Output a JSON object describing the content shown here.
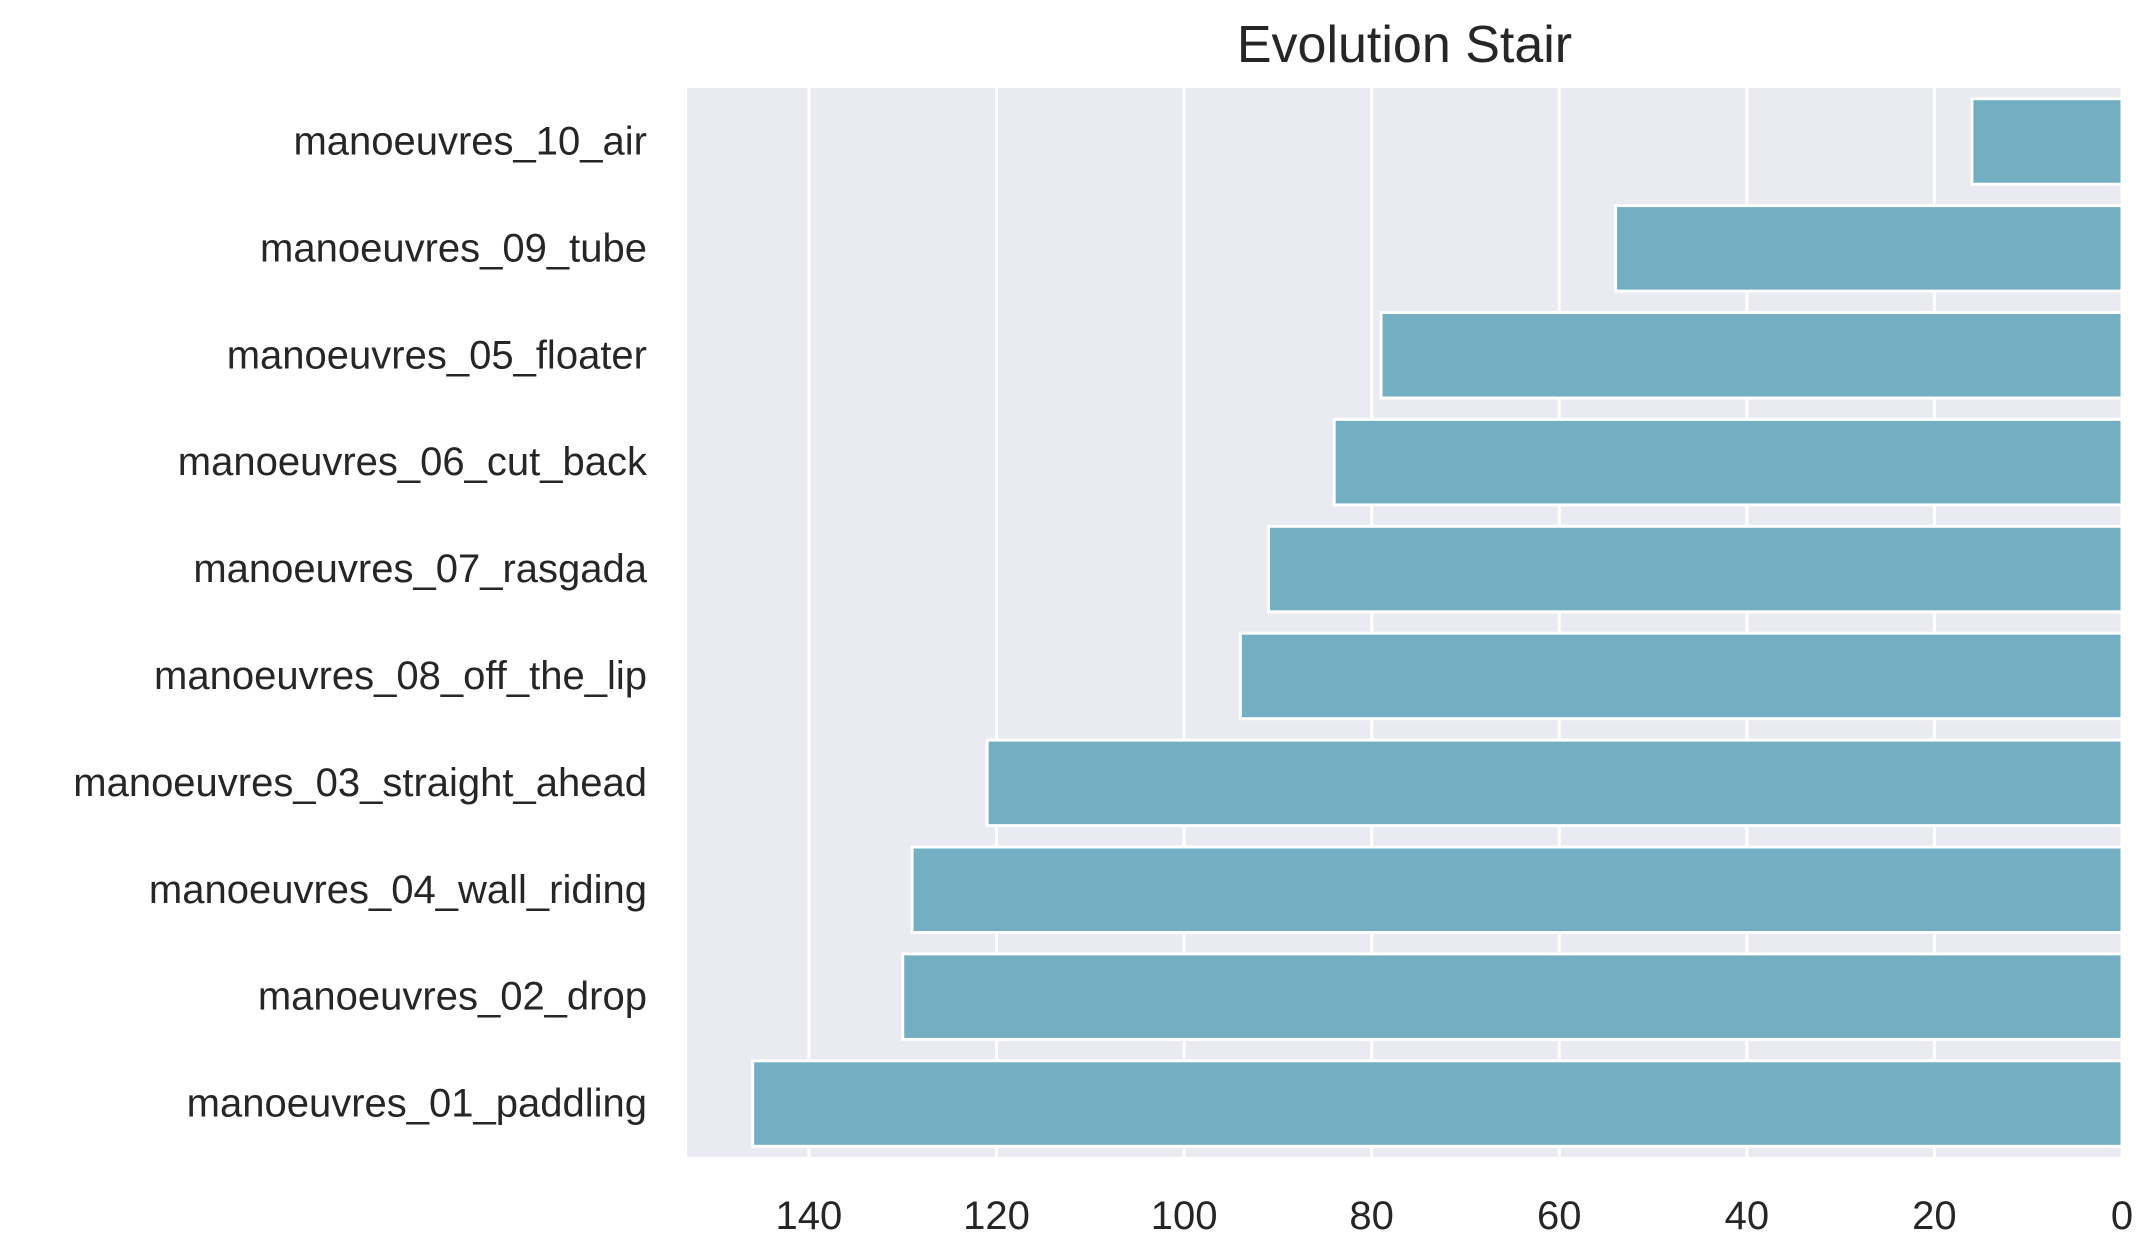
{
  "chart_data": {
    "type": "bar",
    "orientation": "horizontal",
    "title": "Evolution Stair",
    "xlabel": "",
    "ylabel": "",
    "categories": [
      "manoeuvres_10_air",
      "manoeuvres_09_tube",
      "manoeuvres_05_floater",
      "manoeuvres_06_cut_back",
      "manoeuvres_07_rasgada",
      "manoeuvres_08_off_the_lip",
      "manoeuvres_03_straight_ahead",
      "manoeuvres_04_wall_riding",
      "manoeuvres_02_drop",
      "manoeuvres_01_paddling"
    ],
    "values": [
      16,
      54,
      79,
      84,
      91,
      94,
      121,
      129,
      130,
      146
    ],
    "xlim": [
      153,
      0
    ],
    "x_axis_reversed": true,
    "xticks": [
      140,
      120,
      100,
      80,
      60,
      40,
      20,
      0
    ],
    "grid": true,
    "legend": "none",
    "colors": {
      "bar": "#74aec2",
      "plot_background": "#eaeaf2",
      "grid": "#ffffff",
      "text": "#262626"
    }
  }
}
